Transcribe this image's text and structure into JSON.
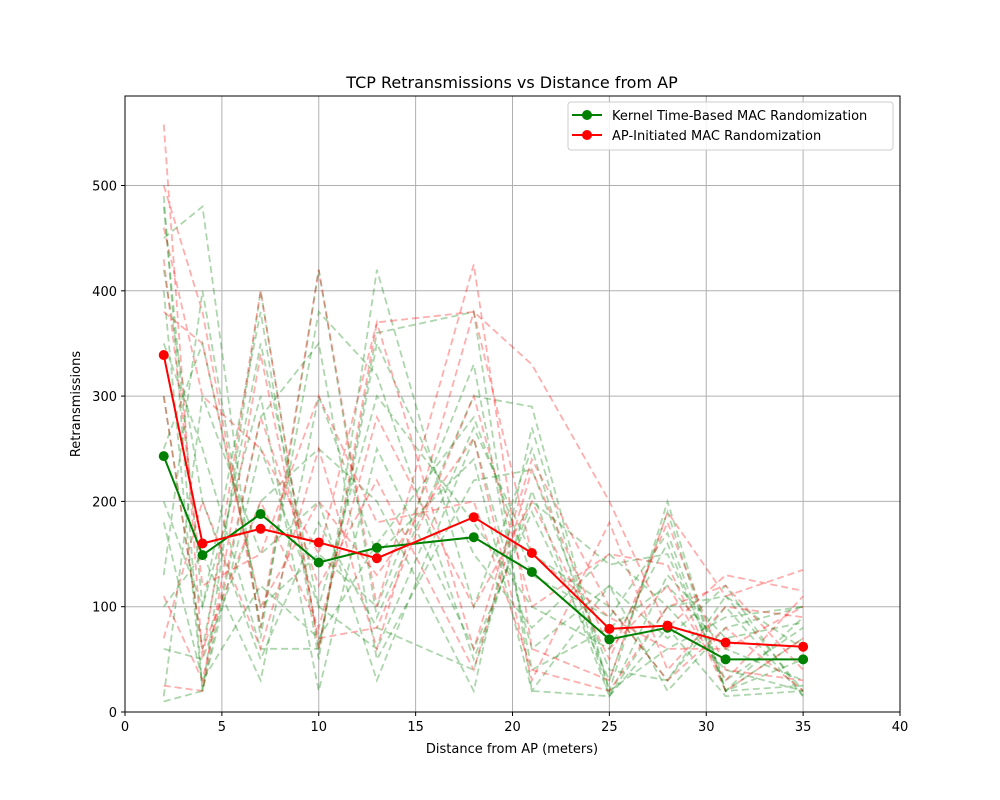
{
  "chart_data": {
    "type": "line",
    "title": "TCP Retransmissions vs Distance from AP",
    "xlabel": "Distance from AP (meters)",
    "ylabel": "Retransmissions",
    "xlim": [
      0,
      40
    ],
    "ylim": [
      0,
      585
    ],
    "xticks": [
      0,
      5,
      10,
      15,
      20,
      25,
      30,
      35,
      40
    ],
    "yticks": [
      0,
      100,
      200,
      300,
      400,
      500
    ],
    "grid": true,
    "legend_position": "top-right",
    "x": [
      2,
      4,
      7,
      10,
      13,
      18,
      21,
      25,
      28,
      31,
      35
    ],
    "series": [
      {
        "name": "Kernel Time-Based MAC Randomization",
        "color": "#008000",
        "values": [
          243,
          149,
          188,
          142,
          156,
          166,
          133,
          69,
          80,
          50,
          50
        ]
      },
      {
        "name": "AP-Initiated MAC Randomization",
        "color": "#ff0000",
        "values": [
          339,
          160,
          174,
          161,
          146,
          185,
          151,
          79,
          82,
          66,
          62
        ]
      }
    ],
    "individual_runs": {
      "style": "dashed, semi-transparent",
      "green_runs": [
        [
          490,
          20,
          400,
          60,
          360,
          380,
          20,
          15,
          80,
          15,
          20
        ],
        [
          450,
          480,
          70,
          420,
          90,
          300,
          290,
          20,
          200,
          20,
          90
        ],
        [
          300,
          60,
          350,
          100,
          60,
          270,
          150,
          100,
          30,
          100,
          15
        ],
        [
          130,
          400,
          80,
          380,
          320,
          50,
          200,
          140,
          150,
          30,
          80
        ],
        [
          200,
          100,
          380,
          50,
          420,
          100,
          250,
          15,
          100,
          110,
          20
        ],
        [
          15,
          300,
          150,
          200,
          30,
          260,
          60,
          120,
          20,
          80,
          100
        ],
        [
          400,
          20,
          250,
          100,
          300,
          180,
          100,
          60,
          160,
          20,
          50
        ],
        [
          100,
          150,
          30,
          300,
          150,
          240,
          20,
          120,
          70,
          120,
          15
        ],
        [
          480,
          100,
          300,
          20,
          250,
          60,
          190,
          30,
          190,
          20,
          70
        ],
        [
          250,
          350,
          100,
          150,
          100,
          330,
          40,
          80,
          120,
          60,
          30
        ],
        [
          60,
          50,
          200,
          250,
          200,
          20,
          270,
          20,
          60,
          90,
          100
        ],
        [
          350,
          250,
          60,
          60,
          350,
          150,
          80,
          150,
          100,
          40,
          20
        ],
        [
          10,
          20,
          280,
          350,
          50,
          220,
          230,
          40,
          30,
          110,
          60
        ],
        [
          180,
          30,
          120,
          70,
          160,
          280,
          130,
          90,
          170,
          20,
          25
        ],
        [
          420,
          200,
          50,
          180,
          80,
          40,
          210,
          15,
          130,
          70,
          85
        ]
      ],
      "red_runs": [
        [
          558,
          50,
          400,
          60,
          370,
          380,
          330,
          200,
          80,
          130,
          115
        ],
        [
          500,
          380,
          80,
          420,
          100,
          425,
          60,
          30,
          190,
          110,
          135
        ],
        [
          460,
          300,
          250,
          150,
          370,
          60,
          240,
          100,
          30,
          80,
          20
        ],
        [
          25,
          20,
          340,
          70,
          80,
          300,
          100,
          150,
          140,
          20,
          70
        ],
        [
          430,
          120,
          150,
          300,
          180,
          200,
          40,
          20,
          100,
          120,
          40
        ],
        [
          70,
          200,
          60,
          250,
          60,
          380,
          150,
          90,
          60,
          60,
          100
        ],
        [
          300,
          60,
          200,
          80,
          280,
          100,
          200,
          50,
          180,
          40,
          30
        ],
        [
          380,
          350,
          100,
          200,
          130,
          260,
          30,
          180,
          40,
          100,
          90
        ],
        [
          110,
          30,
          280,
          120,
          220,
          40,
          230,
          60,
          120,
          30,
          110
        ]
      ]
    }
  }
}
